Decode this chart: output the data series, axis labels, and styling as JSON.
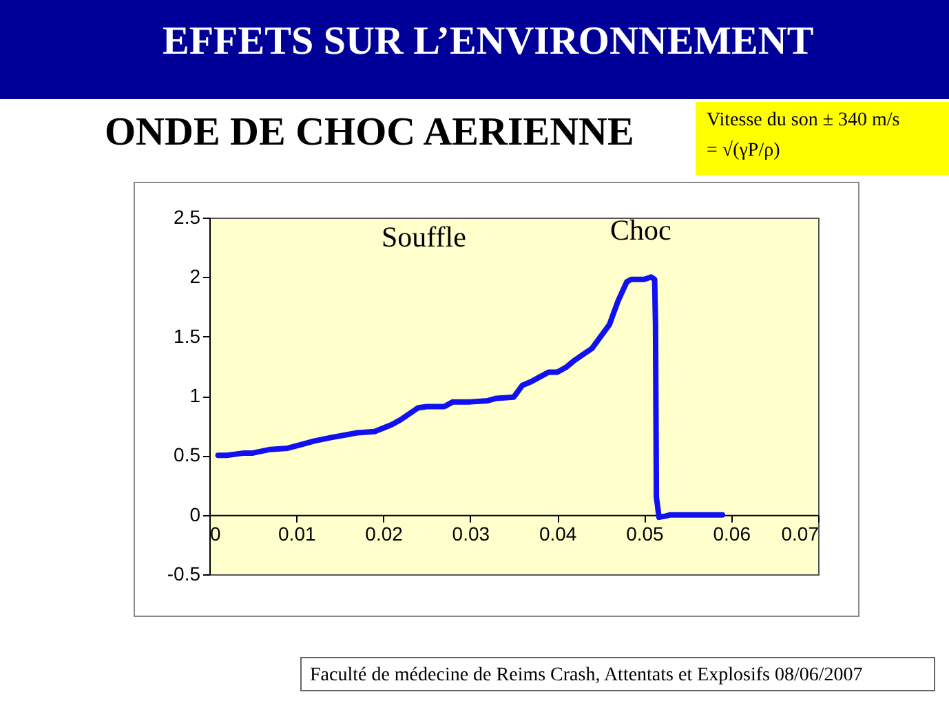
{
  "chart_data": {
    "type": "line",
    "title": "EFFETS SUR L’ENVIRONNEMENT",
    "subtitle": "ONDE DE CHOC AERIENNE",
    "annotations": [
      "Vitesse du son ± 340 m/s",
      "= √(γP/ρ)",
      "Souffle",
      "Choc",
      "Faculté de médecine de Reims Crash, Attentats et Explosifs  08/06/2007"
    ],
    "x": [
      0.001,
      0.002,
      0.004,
      0.005,
      0.007,
      0.009,
      0.011,
      0.012,
      0.014,
      0.017,
      0.019,
      0.021,
      0.022,
      0.024,
      0.025,
      0.027,
      0.028,
      0.03,
      0.032,
      0.033,
      0.035,
      0.036,
      0.037,
      0.038,
      0.039,
      0.04,
      0.041,
      0.042,
      0.043,
      0.044,
      0.045,
      0.046,
      0.047,
      0.048,
      0.0485,
      0.05,
      0.0508,
      0.0512,
      0.0513,
      0.0514,
      0.0517,
      0.0525,
      0.053,
      0.059
    ],
    "values": [
      0.5,
      0.5,
      0.52,
      0.52,
      0.55,
      0.56,
      0.6,
      0.62,
      0.65,
      0.69,
      0.7,
      0.76,
      0.8,
      0.9,
      0.91,
      0.91,
      0.95,
      0.95,
      0.96,
      0.98,
      0.99,
      1.09,
      1.12,
      1.16,
      1.2,
      1.2,
      1.24,
      1.3,
      1.35,
      1.4,
      1.5,
      1.6,
      1.8,
      1.96,
      1.98,
      1.98,
      2.0,
      1.98,
      1.6,
      0.15,
      -0.02,
      -0.01,
      0,
      0
    ],
    "color": "#1010f0",
    "line_style": "solid",
    "xlim": [
      0,
      0.07
    ],
    "xticks": [
      0,
      0.01,
      0.02,
      0.03,
      0.04,
      0.05,
      0.06,
      0.07
    ],
    "ylim": [
      -0.5,
      2.5
    ],
    "yticks": [
      -0.5,
      0,
      0.5,
      1,
      1.5,
      2,
      2.5
    ]
  }
}
